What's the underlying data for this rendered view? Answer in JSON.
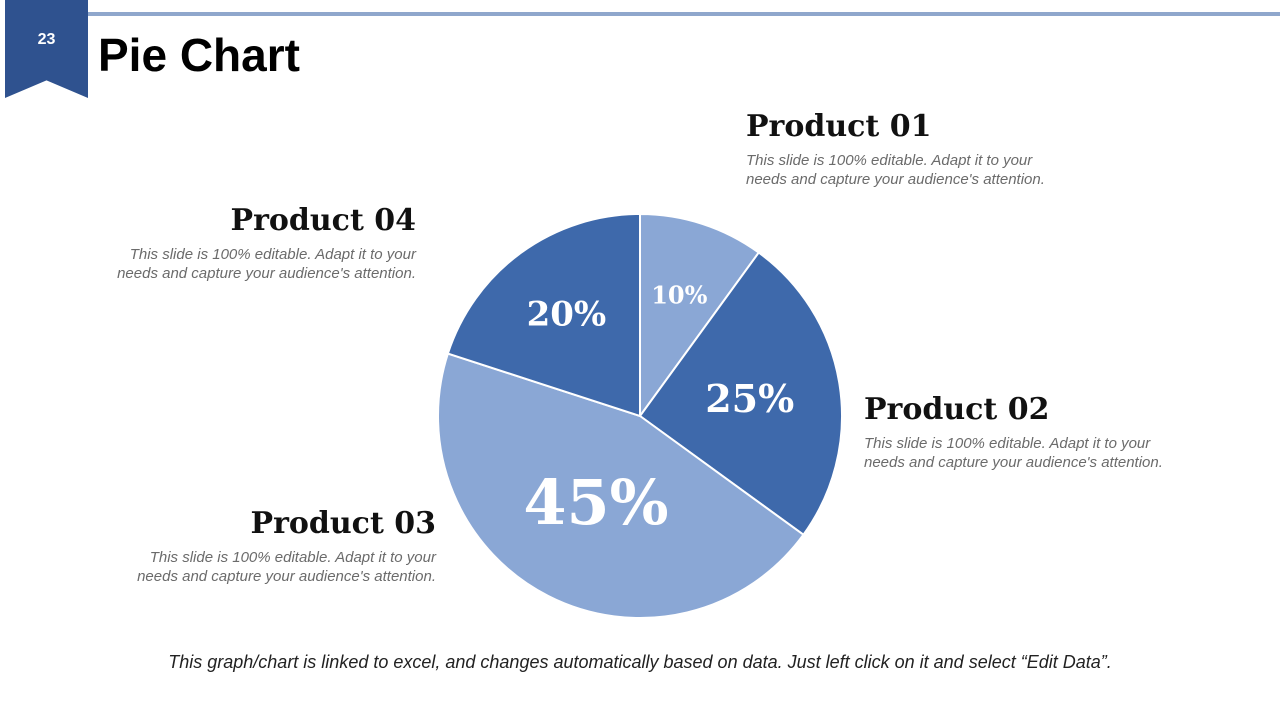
{
  "slide": {
    "number": "23",
    "title": "Pie Chart"
  },
  "colors": {
    "accent": "#2f528f",
    "rule": "#8fa7cc",
    "light_slice": "#8aa7d5",
    "dark_slice": "#3e69ab"
  },
  "products": [
    {
      "title": "Product 01",
      "description": "This slide is 100% editable. Adapt it to your needs and capture your audience's attention."
    },
    {
      "title": "Product 02",
      "description": "This slide is 100% editable. Adapt it to your needs and capture your audience's attention."
    },
    {
      "title": "Product 03",
      "description": "This slide is 100% editable. Adapt it to your needs and capture your audience's attention."
    },
    {
      "title": "Product 04",
      "description": "This slide is 100% editable. Adapt it to your needs and capture your audience's attention."
    }
  ],
  "chart_data": {
    "type": "pie",
    "title": "",
    "categories": [
      "Product 01",
      "Product 02",
      "Product 03",
      "Product 04"
    ],
    "values": [
      10,
      25,
      45,
      20
    ],
    "labels": [
      "10%",
      "25%",
      "45%",
      "20%"
    ],
    "colors": [
      "#8aa7d5",
      "#3e69ab",
      "#8aa7d5",
      "#3e69ab"
    ],
    "start_angle": "12 o'clock",
    "direction": "clockwise"
  },
  "footer": {
    "note": "This graph/chart is linked to excel, and changes automatically based on data. Just left click on it and select “Edit Data”."
  }
}
